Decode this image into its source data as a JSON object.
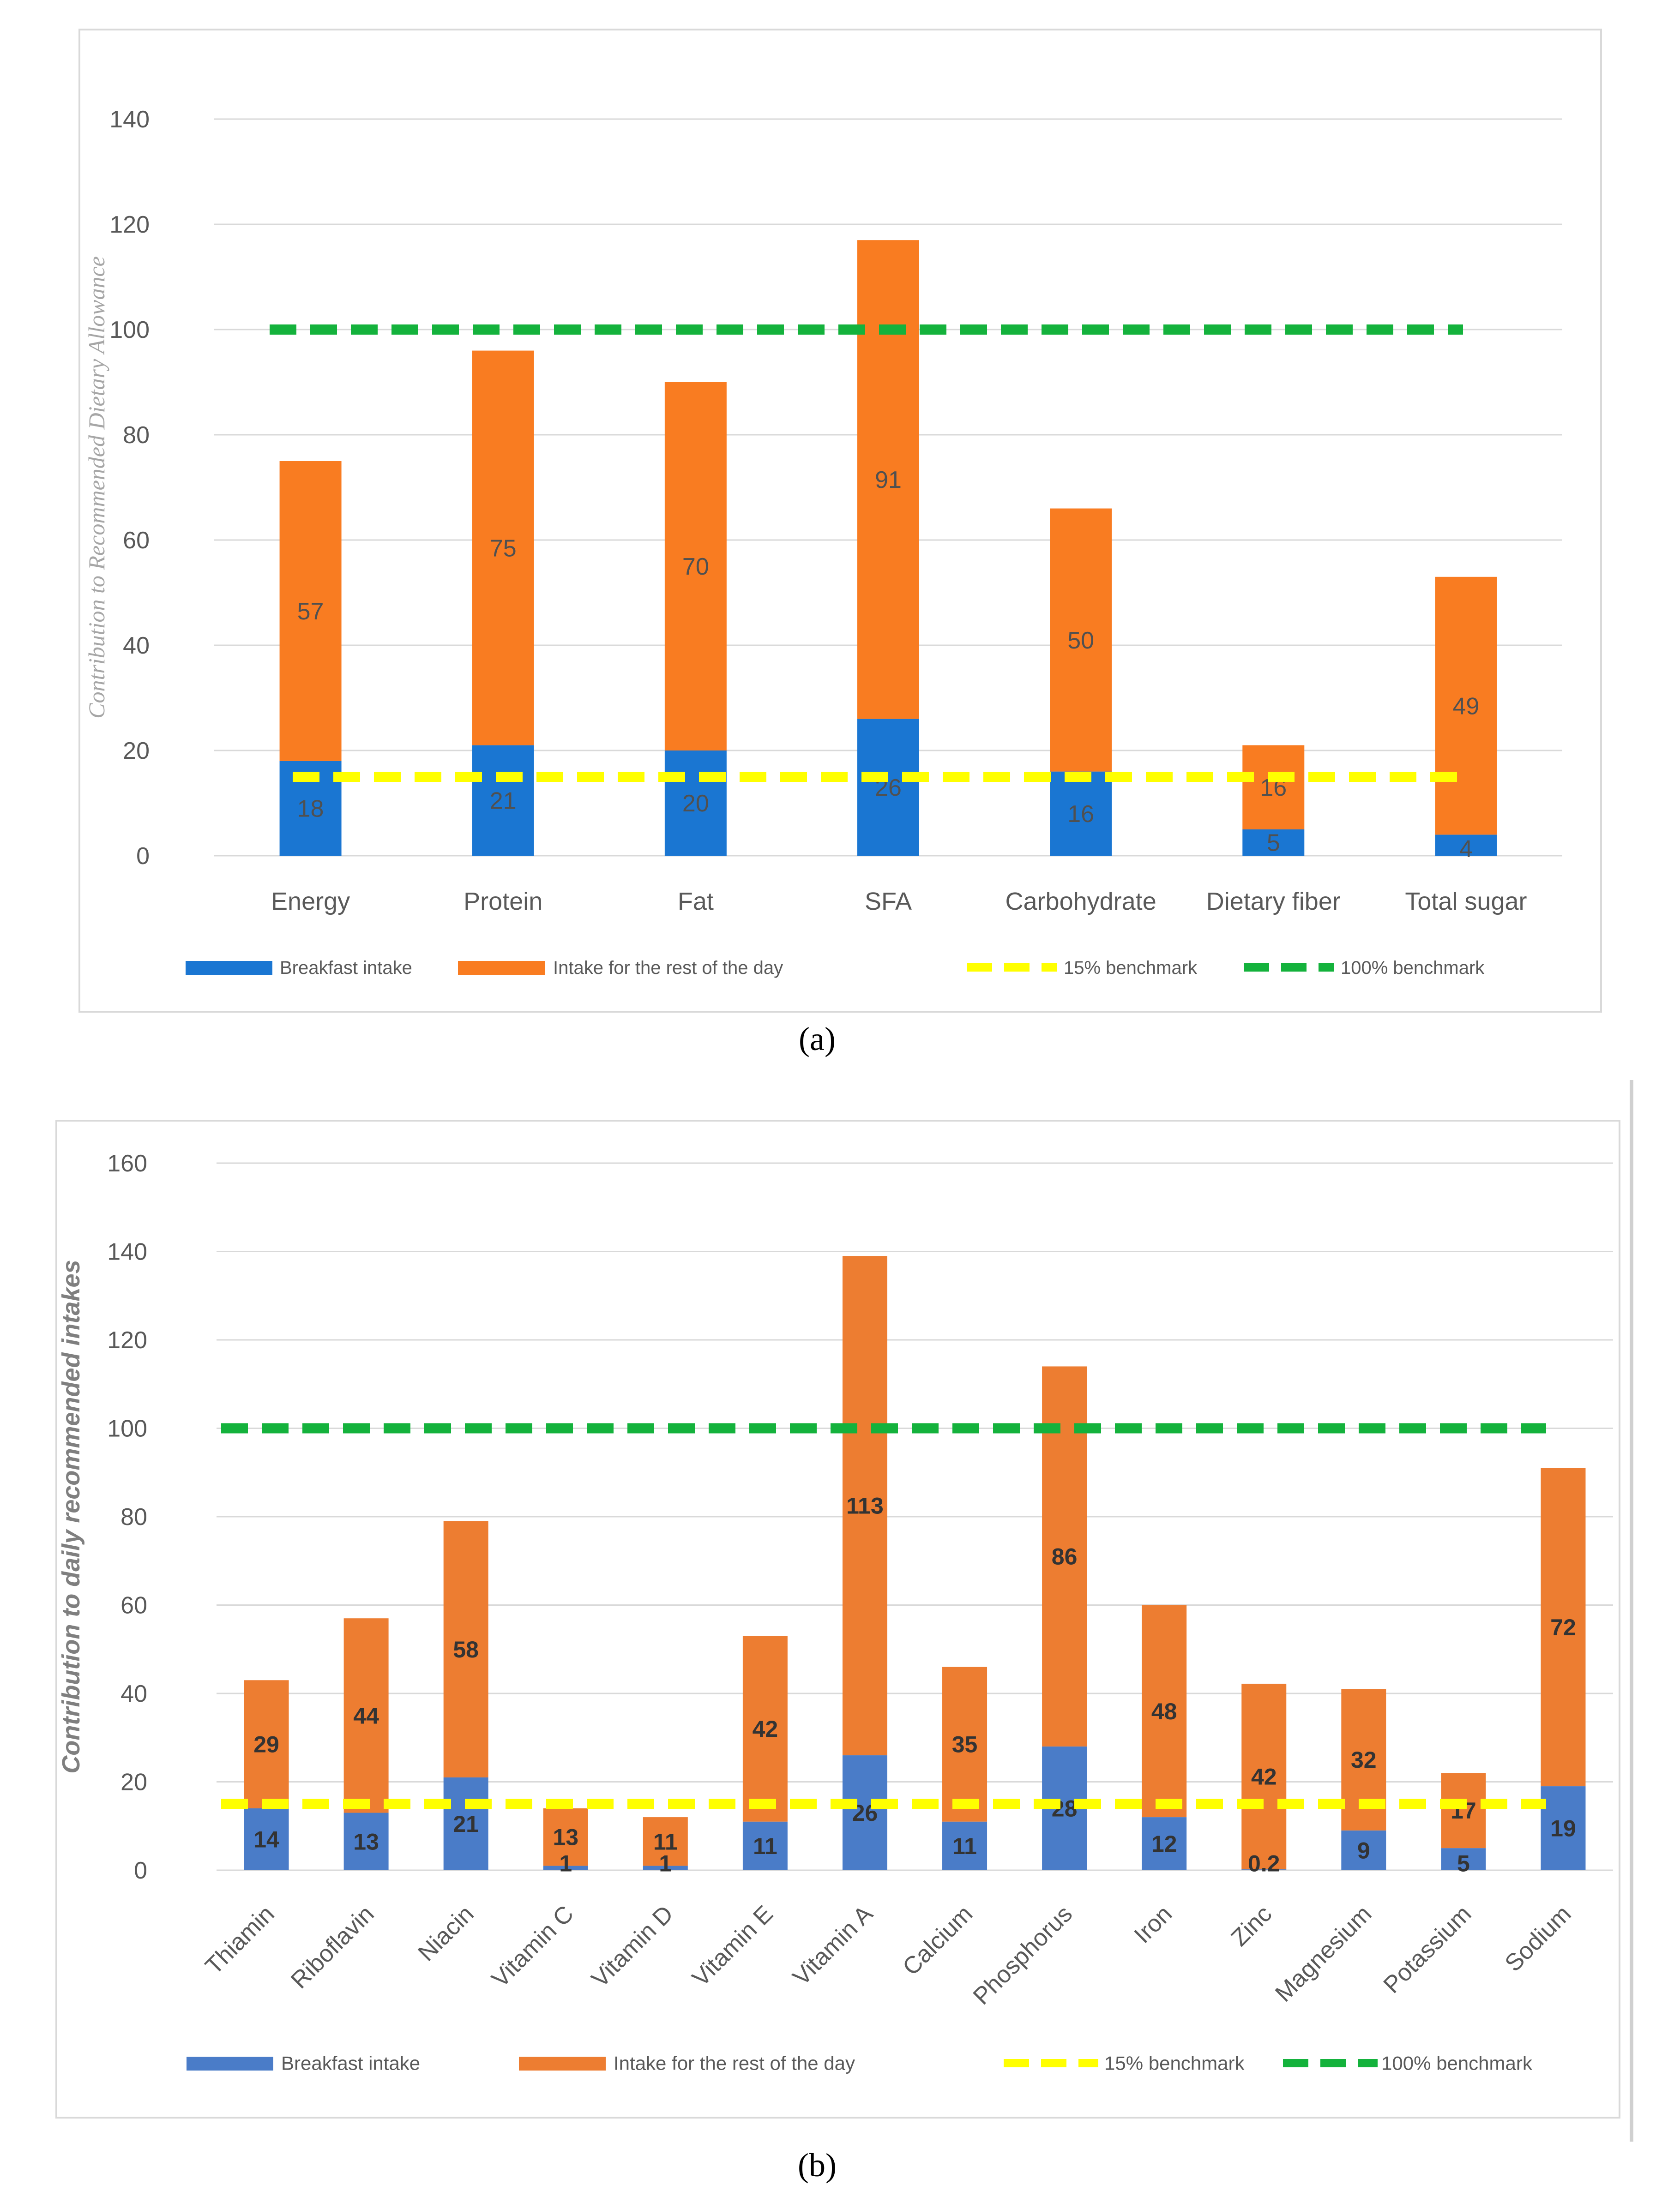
{
  "captions": {
    "a": "(a)",
    "b": "(b)"
  },
  "colors": {
    "breakfast_a": "#1a76d2",
    "rest_a": "#f97c21",
    "breakfast_b": "#4a7cc8",
    "rest_b": "#ed7d31",
    "benchmark_15": "#ffff00",
    "benchmark_100": "#14b23c",
    "grid": "#d9d9d9",
    "axis_text": "#595959",
    "label_text_a": "#505050",
    "label_text_b": "#333333"
  },
  "chart_data": [
    {
      "id": "a",
      "type": "bar",
      "stacked": true,
      "ylabel": "Contribution to Recommended Dietary Allowance",
      "ylim": [
        0,
        140
      ],
      "yticks": [
        0,
        20,
        40,
        60,
        80,
        100,
        120,
        140
      ],
      "grid": true,
      "categories": [
        "Energy",
        "Protein",
        "Fat",
        "SFA",
        "Carbohydrate",
        "Dietary fiber",
        "Total sugar"
      ],
      "series": [
        {
          "name": "Breakfast intake",
          "values": [
            18,
            21,
            20,
            26,
            16,
            5,
            4
          ]
        },
        {
          "name": "Intake for the rest of the day",
          "values": [
            57,
            75,
            70,
            91,
            50,
            16,
            49
          ]
        }
      ],
      "benchmarks": [
        {
          "name": "15% benchmark",
          "value": 15
        },
        {
          "name": "100% benchmark",
          "value": 100
        }
      ],
      "legend": [
        "Breakfast intake",
        "Intake for the rest of the day",
        "15% benchmark",
        "100% benchmark"
      ],
      "legend_position": "bottom"
    },
    {
      "id": "b",
      "type": "bar",
      "stacked": true,
      "ylabel": "Contribution to daily recommended intakes",
      "ylim": [
        0,
        160
      ],
      "yticks": [
        0,
        20,
        40,
        60,
        80,
        100,
        120,
        140,
        160
      ],
      "grid": true,
      "categories": [
        "Thiamin",
        "Riboflavin",
        "Niacin",
        "Vitamin C",
        "Vitamin D",
        "Vitamin E",
        "Vitamin A",
        "Calcium",
        "Phosphorus",
        "Iron",
        "Zinc",
        "Magnesium",
        "Potassium",
        "Sodium"
      ],
      "series": [
        {
          "name": "Breakfast intake",
          "values": [
            14,
            13,
            21,
            1,
            1,
            11,
            26,
            11,
            28,
            12,
            0.2,
            9,
            5,
            19
          ]
        },
        {
          "name": "Intake for the rest of the day",
          "values": [
            29,
            44,
            58,
            13,
            11,
            42,
            113,
            35,
            86,
            48,
            42,
            32,
            17,
            72
          ]
        }
      ],
      "benchmarks": [
        {
          "name": "15% benchmark",
          "value": 15
        },
        {
          "name": "100% benchmark",
          "value": 100
        }
      ],
      "legend": [
        "Breakfast intake",
        "Intake for the rest of the day",
        "15% benchmark",
        "100% benchmark"
      ],
      "legend_position": "bottom"
    }
  ]
}
